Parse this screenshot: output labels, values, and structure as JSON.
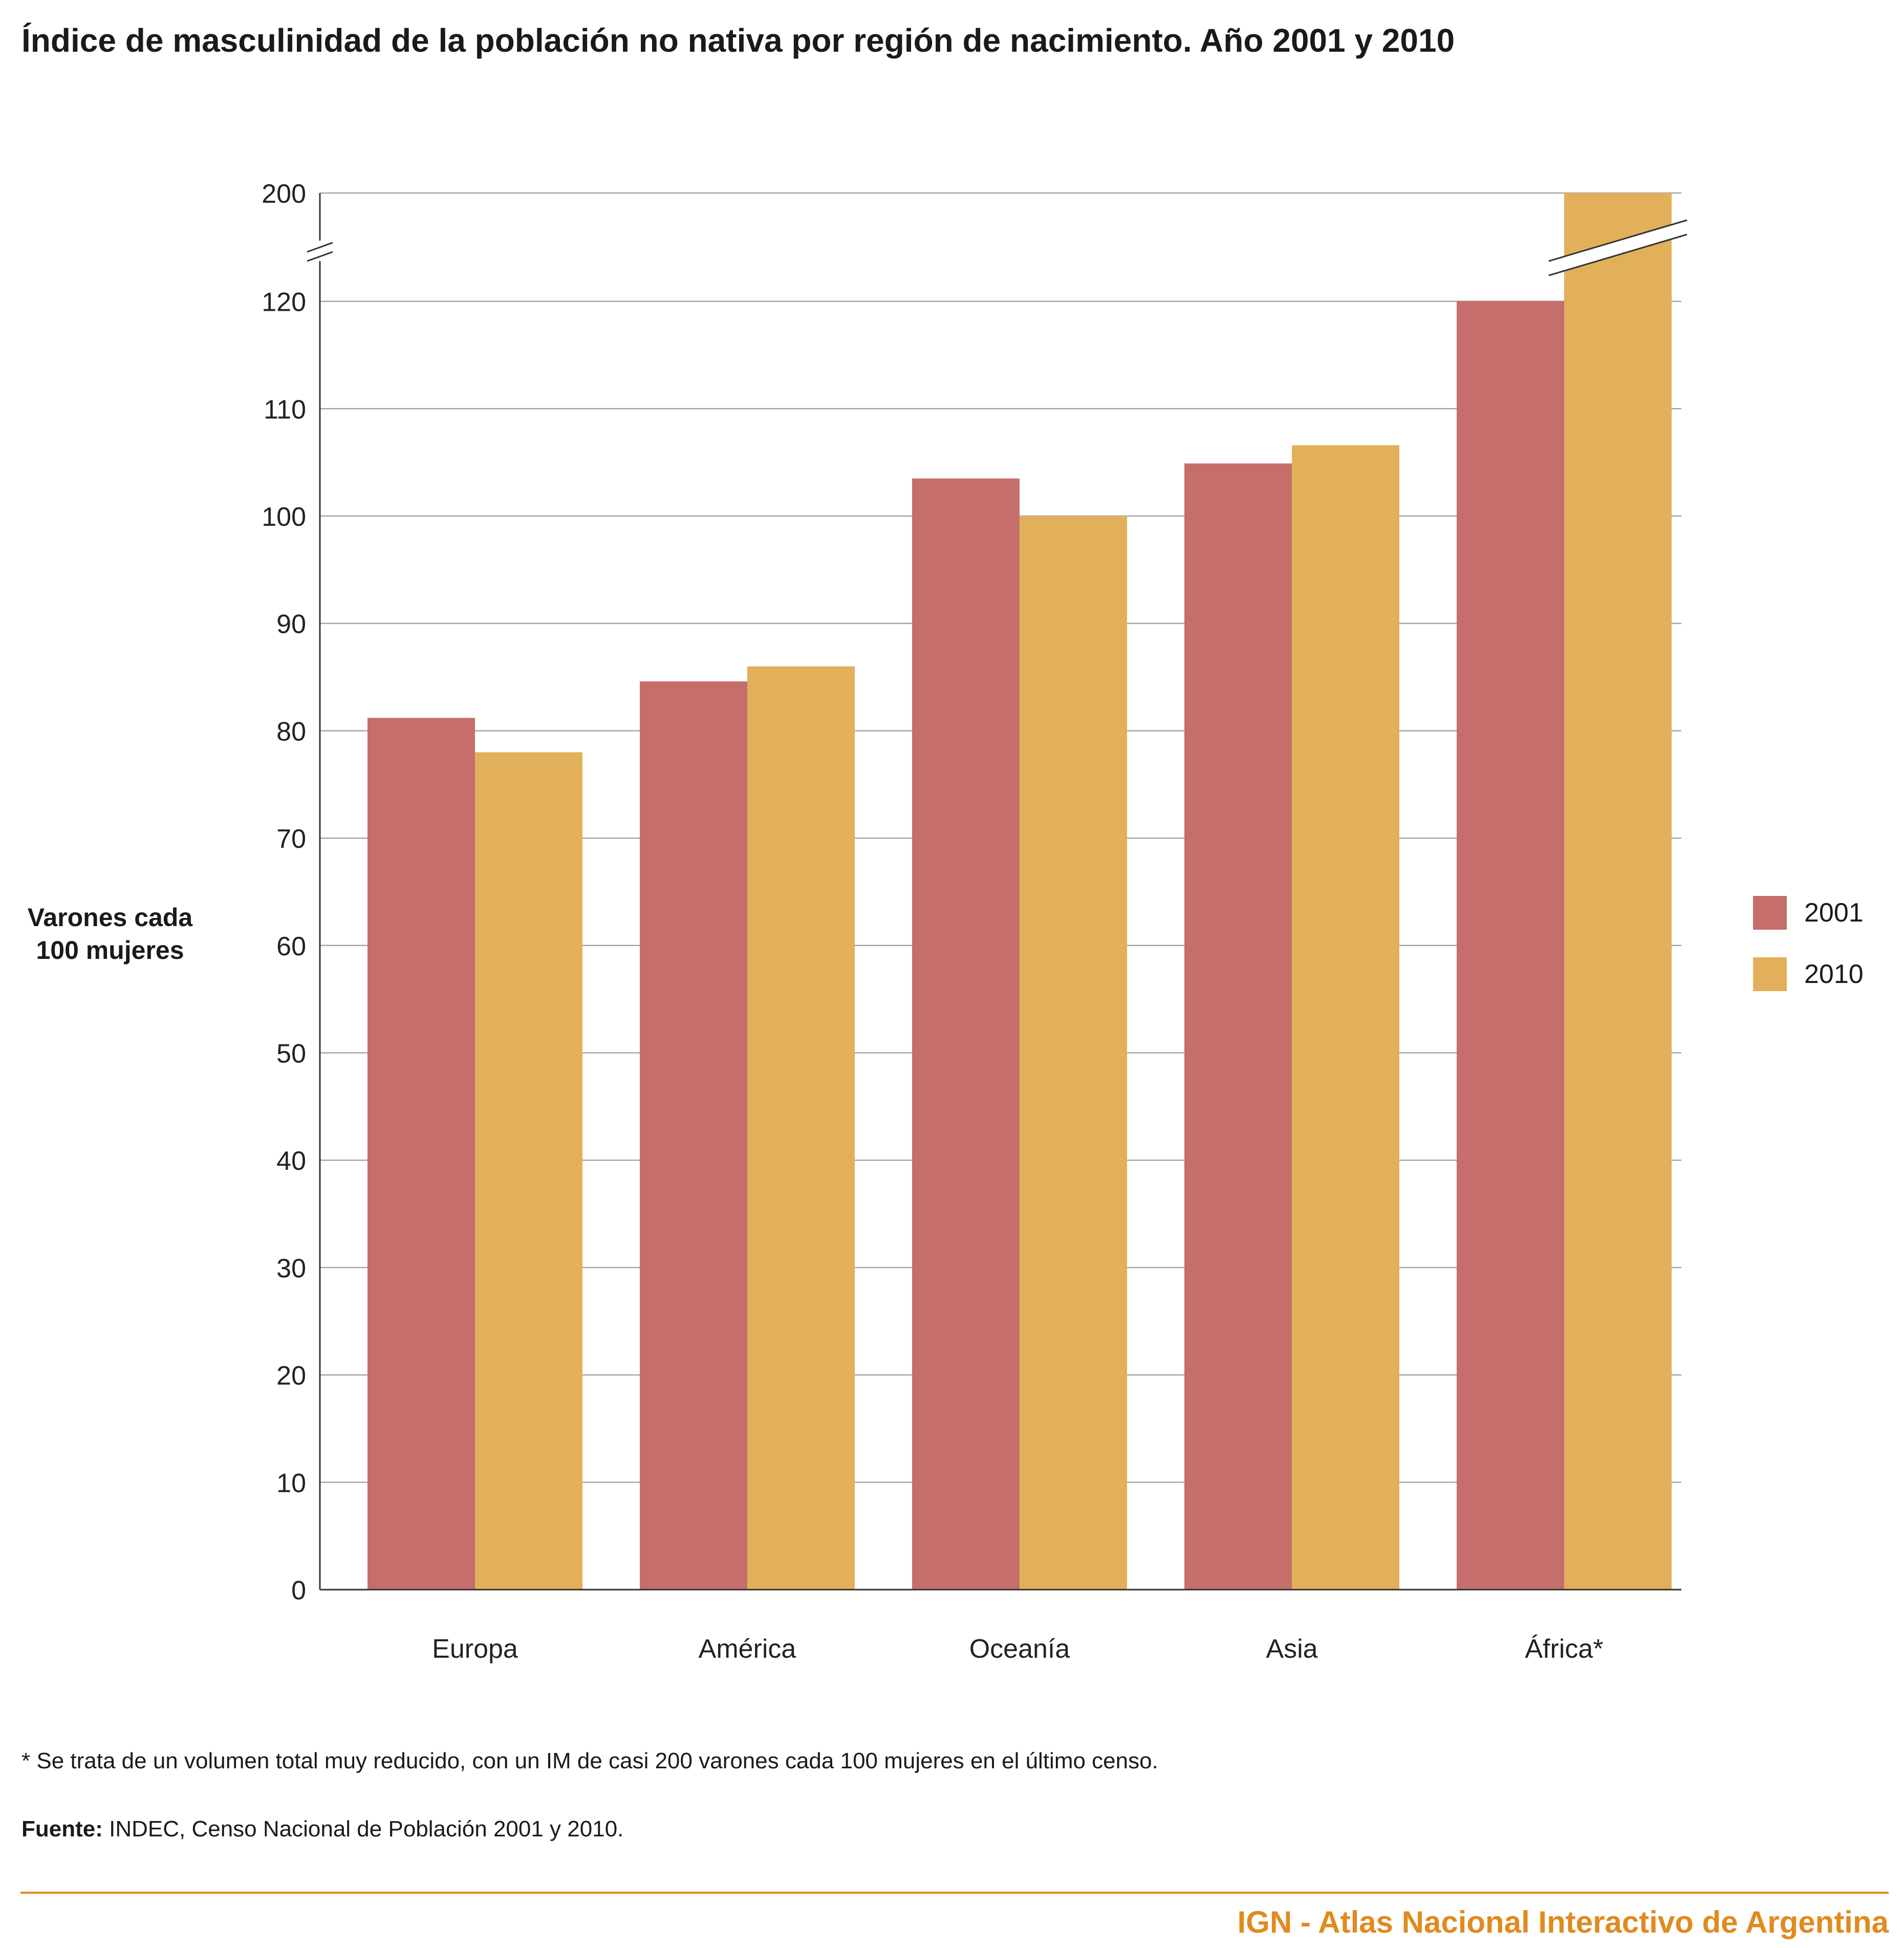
{
  "title": "Índice de masculinidad de la población no nativa por región de nacimiento. Año 2001 y 2010",
  "ylabel_lines": [
    "Varones cada",
    "100 mujeres"
  ],
  "footnote": "* Se trata de un volumen total muy reducido, con un IM de casi 200 varones cada 100 mujeres en el último censo.",
  "source": {
    "label": "Fuente:",
    "text": " INDEC, Censo Nacional de Población 2001 y 2010."
  },
  "brand": "IGN - Atlas Nacional Interactivo de Argentina",
  "colors": {
    "series_2001": "#c56e6b",
    "series_2010": "#e2b05a",
    "brand": "#e08a1f",
    "grid": "#a6a6a6",
    "axis": "#333333"
  },
  "chart_data": {
    "type": "bar",
    "categories": [
      "Europa",
      "América",
      "Oceanía",
      "Asia",
      "África*"
    ],
    "series": [
      {
        "name": "2001",
        "values": [
          81.2,
          84.6,
          103.5,
          104.9,
          120.3
        ]
      },
      {
        "name": "2010",
        "values": [
          78.0,
          86.0,
          100.0,
          106.6,
          200
        ]
      }
    ],
    "y_ticks": [
      "0",
      "10",
      "20",
      "30",
      "40",
      "50",
      "60",
      "70",
      "80",
      "90",
      "100",
      "110",
      "120",
      "200"
    ],
    "ylim": [
      0,
      200
    ],
    "axis_break": "between 120 and 200",
    "grid": true,
    "legend_position": "right"
  }
}
